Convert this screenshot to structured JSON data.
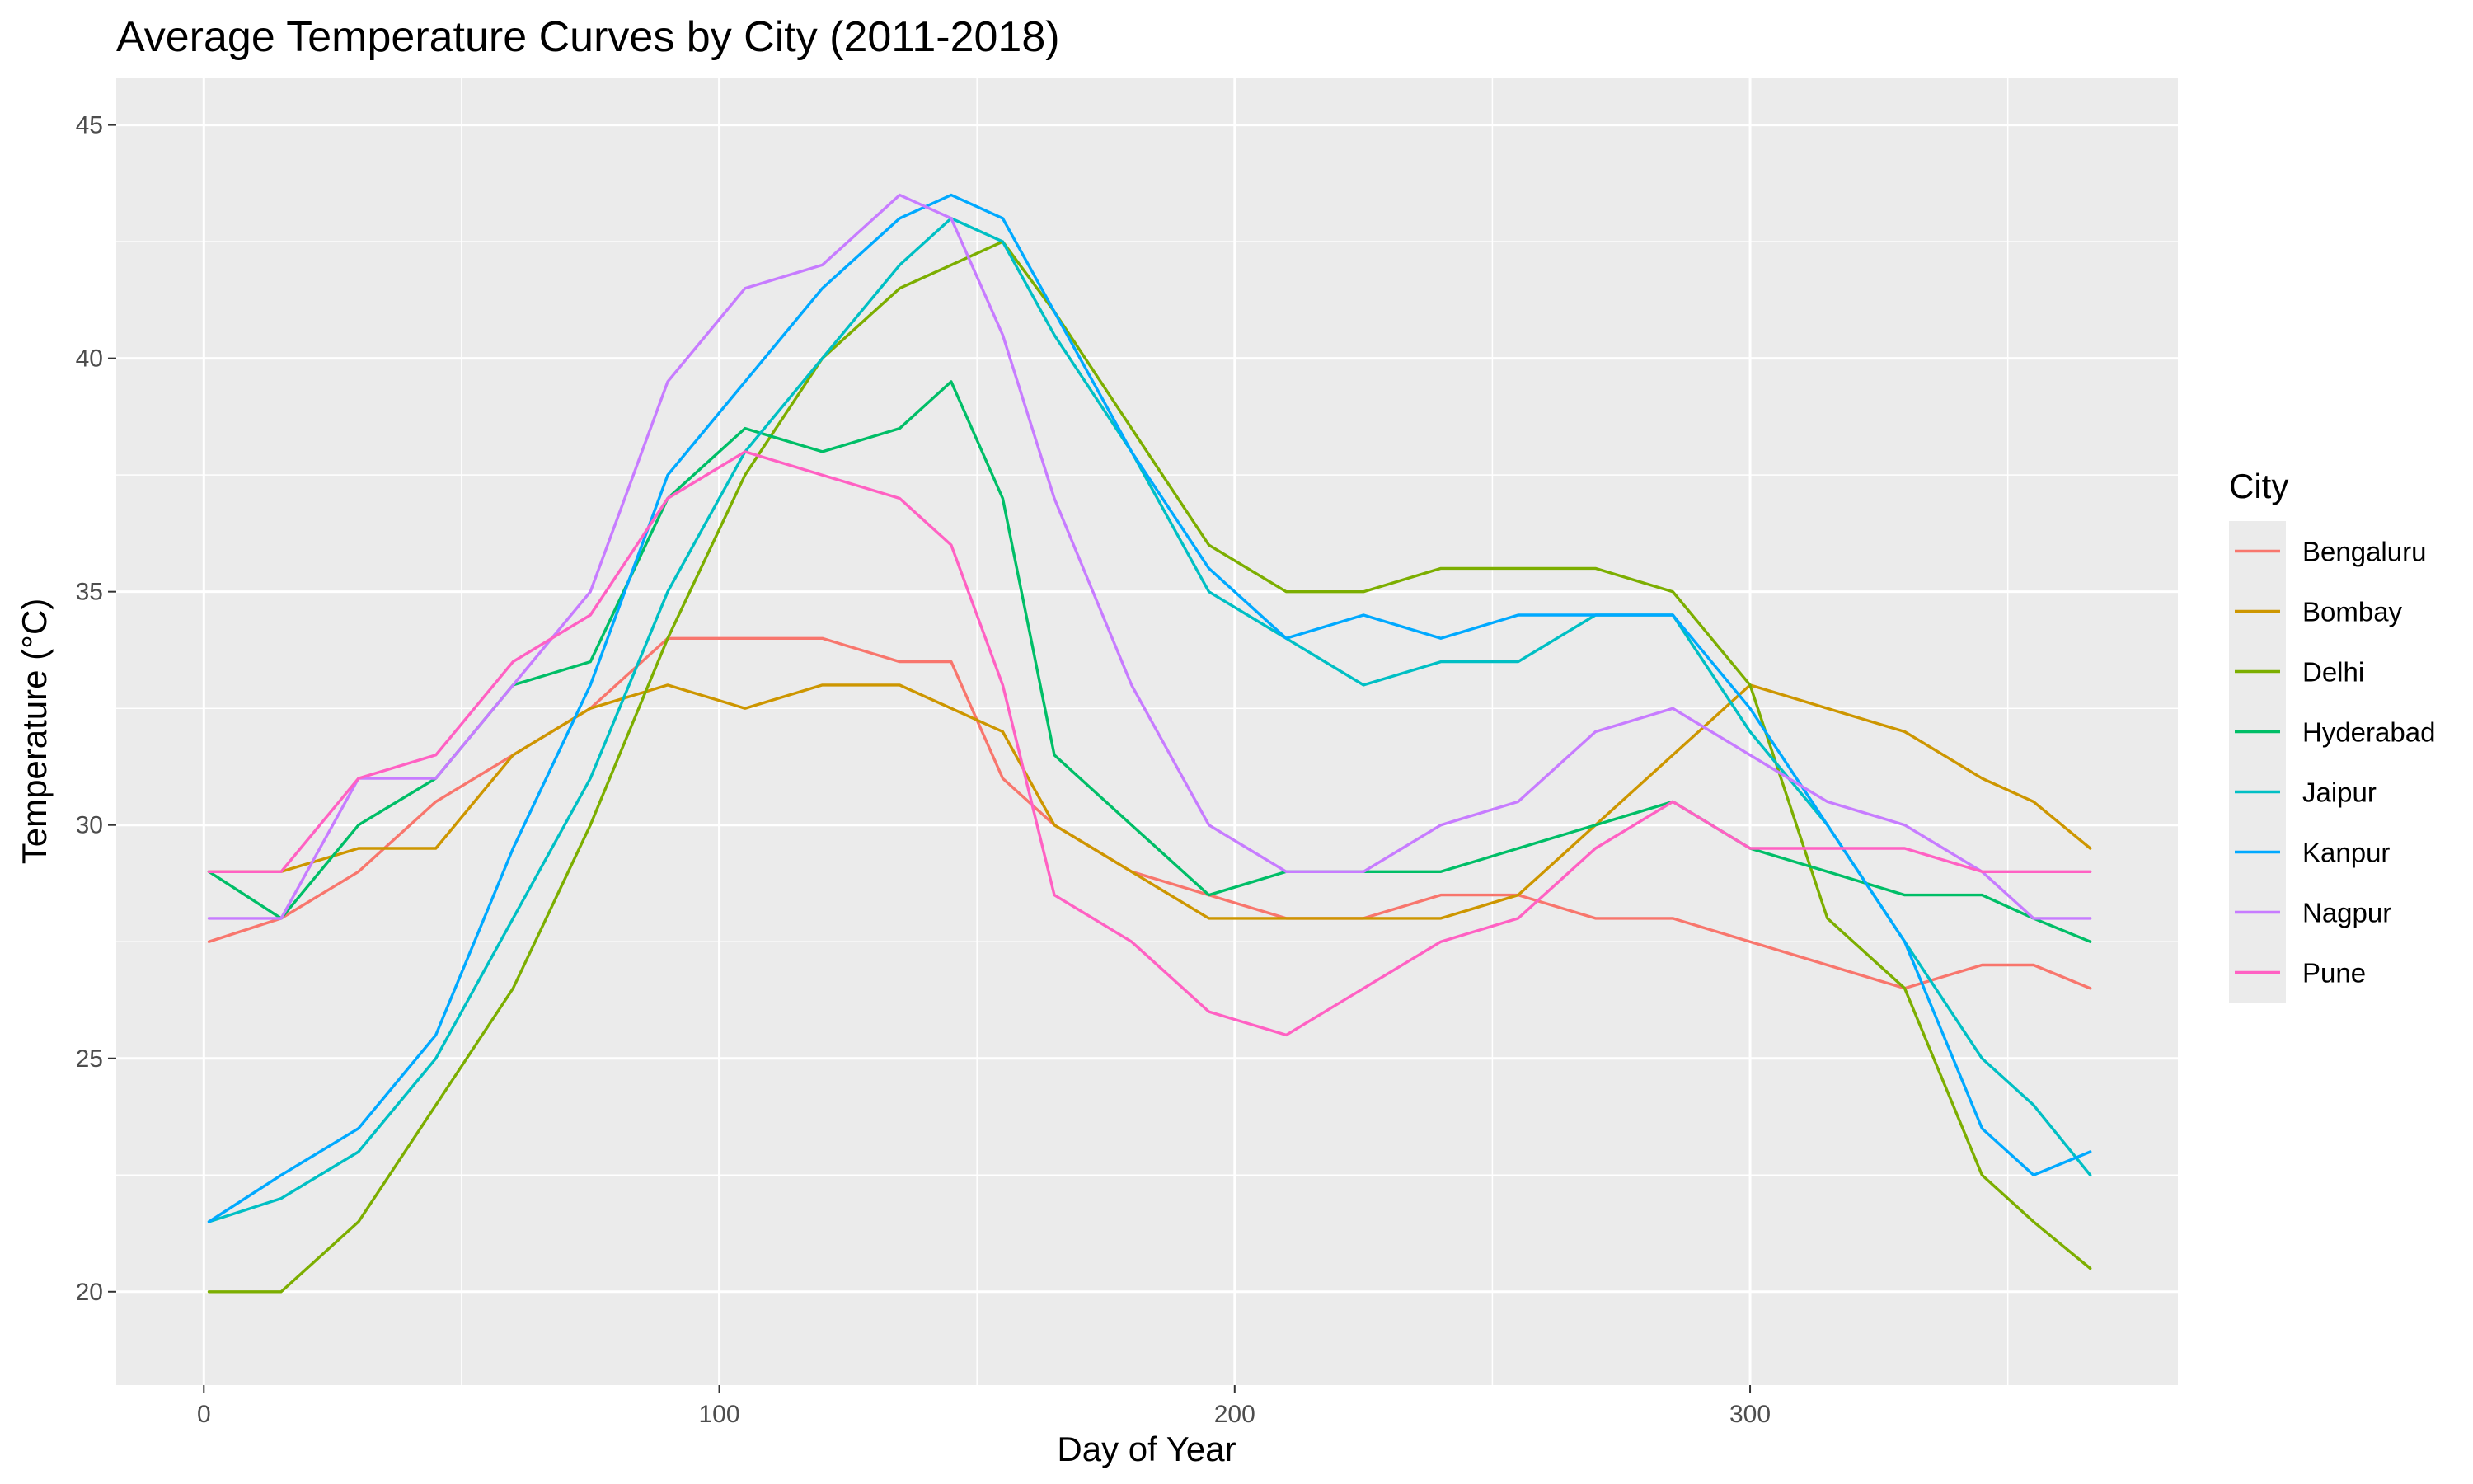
{
  "chart_data": {
    "type": "line",
    "title": "Average Temperature Curves by City (2011-2018)",
    "xlabel": "Day of Year",
    "ylabel": "Temperature (°C)",
    "xlim": [
      -17,
      383
    ],
    "ylim": [
      18,
      46
    ],
    "xticks": [
      0,
      100,
      200,
      300
    ],
    "yticks": [
      20,
      25,
      30,
      35,
      40,
      45
    ],
    "grid": true,
    "legend_title": "City",
    "legend_position": "right",
    "x": [
      1,
      15,
      30,
      45,
      60,
      75,
      90,
      105,
      120,
      135,
      145,
      155,
      165,
      180,
      195,
      210,
      225,
      240,
      255,
      270,
      285,
      300,
      315,
      330,
      345,
      355,
      366
    ],
    "series": [
      {
        "name": "Bengaluru",
        "color": "#F8766D",
        "values": [
          27.5,
          28.0,
          29.0,
          30.5,
          31.5,
          32.5,
          34.0,
          34.0,
          34.0,
          33.5,
          33.5,
          31.0,
          30.0,
          29.0,
          28.5,
          28.0,
          28.0,
          28.5,
          28.5,
          28.0,
          28.0,
          27.5,
          27.0,
          26.5,
          27.0,
          27.0,
          26.5
        ]
      },
      {
        "name": "Bombay",
        "color": "#CD9600",
        "values": [
          29.0,
          29.0,
          29.5,
          29.5,
          31.5,
          32.5,
          33.0,
          32.5,
          33.0,
          33.0,
          32.5,
          32.0,
          30.0,
          29.0,
          28.0,
          28.0,
          28.0,
          28.0,
          28.5,
          30.0,
          31.5,
          33.0,
          32.5,
          32.0,
          31.0,
          30.5,
          29.5
        ]
      },
      {
        "name": "Delhi",
        "color": "#7CAE00",
        "values": [
          20.0,
          20.0,
          21.5,
          24.0,
          26.5,
          30.0,
          34.0,
          37.5,
          40.0,
          41.5,
          42.0,
          42.5,
          41.0,
          38.5,
          36.0,
          35.0,
          35.0,
          35.5,
          35.5,
          35.5,
          35.0,
          33.0,
          28.0,
          26.5,
          22.5,
          21.5,
          20.5
        ]
      },
      {
        "name": "Hyderabad",
        "color": "#00BE67",
        "values": [
          29.0,
          28.0,
          30.0,
          31.0,
          33.0,
          33.5,
          37.0,
          38.5,
          38.0,
          38.5,
          39.5,
          37.0,
          31.5,
          30.0,
          28.5,
          29.0,
          29.0,
          29.0,
          29.5,
          30.0,
          30.5,
          29.5,
          29.0,
          28.5,
          28.5,
          28.0,
          27.5
        ]
      },
      {
        "name": "Jaipur",
        "color": "#00BFC4",
        "values": [
          21.5,
          22.0,
          23.0,
          25.0,
          28.0,
          31.0,
          35.0,
          38.0,
          40.0,
          42.0,
          43.0,
          42.5,
          40.5,
          38.0,
          35.0,
          34.0,
          33.0,
          33.5,
          33.5,
          34.5,
          34.5,
          32.0,
          30.0,
          27.5,
          25.0,
          24.0,
          22.5
        ]
      },
      {
        "name": "Kanpur",
        "color": "#00A9FF",
        "values": [
          21.5,
          22.5,
          23.5,
          25.5,
          29.5,
          33.0,
          37.5,
          39.5,
          41.5,
          43.0,
          43.5,
          43.0,
          41.0,
          38.0,
          35.5,
          34.0,
          34.5,
          34.0,
          34.5,
          34.5,
          34.5,
          32.5,
          30.0,
          27.5,
          23.5,
          22.5,
          23.0
        ]
      },
      {
        "name": "Nagpur",
        "color": "#C77CFF",
        "values": [
          28.0,
          28.0,
          31.0,
          31.0,
          33.0,
          35.0,
          39.5,
          41.5,
          42.0,
          43.5,
          43.0,
          40.5,
          37.0,
          33.0,
          30.0,
          29.0,
          29.0,
          30.0,
          30.5,
          32.0,
          32.5,
          31.5,
          30.5,
          30.0,
          29.0,
          28.0,
          28.0
        ]
      },
      {
        "name": "Pune",
        "color": "#FF61C3",
        "values": [
          29.0,
          29.0,
          31.0,
          31.5,
          33.5,
          34.5,
          37.0,
          38.0,
          37.5,
          37.0,
          36.0,
          33.0,
          28.5,
          27.5,
          26.0,
          25.5,
          26.5,
          27.5,
          28.0,
          29.5,
          30.5,
          29.5,
          29.5,
          29.5,
          29.0,
          29.0,
          29.0
        ]
      }
    ]
  }
}
